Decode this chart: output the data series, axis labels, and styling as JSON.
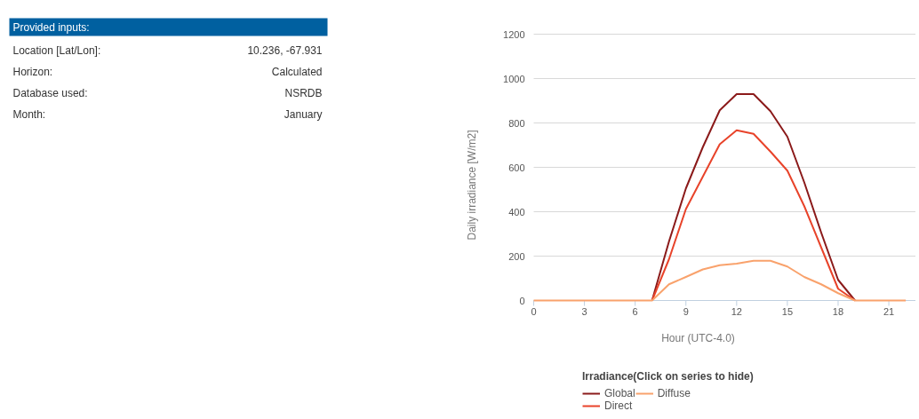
{
  "chart_data": [
    {
      "type": "other",
      "title": "Provided inputs:",
      "color": "#0060a0",
      "annotations": [
        "Location [Lat/Lon]:",
        "10.236, -67.931",
        "Horizon:",
        "Calculated",
        "Database used:",
        "NSRDB",
        "Month:",
        "January"
      ]
    },
    {
      "type": "line",
      "xlabel": "Hour (UTC-4.0)",
      "ylabel": "Daily irradiance [W/m2]",
      "legend_title": "Irradiance(Click on series to hide)",
      "legend": "bottom",
      "grid": "y",
      "marker": "none",
      "line_style": "solid",
      "x": [
        0,
        1,
        2,
        3,
        4,
        5,
        6,
        7,
        8,
        9,
        10,
        11,
        12,
        13,
        14,
        15,
        16,
        17,
        18,
        19,
        20,
        21,
        22
      ],
      "xlim": [
        0,
        22.6
      ],
      "xticks": [
        0,
        3,
        6,
        9,
        12,
        15,
        18,
        21
      ],
      "ylim": [
        0,
        1200
      ],
      "yticks": [
        0,
        200,
        400,
        600,
        800,
        1000,
        1200
      ],
      "series": [
        {
          "name": "Global",
          "color": "#8b1a1a",
          "values": [
            null,
            null,
            null,
            null,
            null,
            null,
            null,
            0,
            266,
            505,
            691,
            857,
            930,
            930,
            853,
            738,
            532,
            306,
            93,
            0,
            null,
            null,
            null
          ]
        },
        {
          "name": "Direct",
          "color": "#e8432a",
          "values": [
            null,
            null,
            null,
            null,
            null,
            null,
            null,
            0,
            186,
            412,
            558,
            704,
            767,
            751,
            671,
            585,
            425,
            239,
            53,
            0,
            null,
            null,
            null
          ]
        },
        {
          "name": "Diffuse",
          "color": "#f9a26c",
          "values": [
            0,
            0,
            0,
            0,
            0,
            0,
            0,
            0,
            73,
            106,
            140,
            159,
            166,
            179,
            179,
            153,
            106,
            73,
            33,
            0,
            0,
            0,
            0
          ]
        }
      ]
    }
  ]
}
